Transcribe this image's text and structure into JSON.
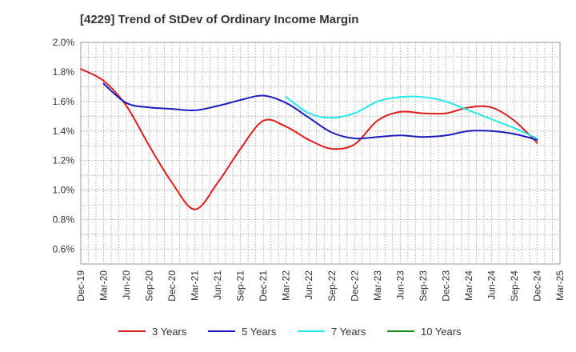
{
  "chart_data": {
    "type": "line",
    "title": "[4229]  Trend of StDev of Ordinary Income Margin",
    "xlabel": "",
    "ylabel": "",
    "ylim": [
      0.5,
      2.0
    ],
    "y_ticks": [
      "0.6%",
      "0.8%",
      "1.0%",
      "1.2%",
      "1.4%",
      "1.6%",
      "1.8%",
      "2.0%"
    ],
    "y_tick_values": [
      0.6,
      0.8,
      1.0,
      1.2,
      1.4,
      1.6,
      1.8,
      2.0
    ],
    "x_ticks": [
      "Dec-19",
      "Mar-20",
      "Jun-20",
      "Sep-20",
      "Dec-20",
      "Mar-21",
      "Jun-21",
      "Sep-21",
      "Dec-21",
      "Mar-22",
      "Jun-22",
      "Sep-22",
      "Dec-22",
      "Mar-23",
      "Jun-23",
      "Sep-23",
      "Dec-23",
      "Mar-24",
      "Jun-24",
      "Sep-24",
      "Dec-24",
      "Mar-25"
    ],
    "grid": true,
    "legend_position": "bottom",
    "series": [
      {
        "name": "3 Years",
        "color": "#dd1c1c",
        "x": [
          "Dec-19",
          "Mar-20",
          "Jun-20",
          "Sep-20",
          "Dec-20",
          "Mar-21",
          "Jun-21",
          "Sep-21",
          "Dec-21",
          "Mar-22",
          "Jun-22",
          "Sep-22",
          "Dec-22",
          "Mar-23",
          "Jun-23",
          "Sep-23",
          "Dec-23",
          "Mar-24",
          "Jun-24",
          "Sep-24",
          "Dec-24"
        ],
        "values": [
          1.82,
          1.74,
          1.57,
          1.3,
          1.05,
          0.87,
          1.05,
          1.28,
          1.47,
          1.43,
          1.34,
          1.28,
          1.31,
          1.47,
          1.53,
          1.52,
          1.52,
          1.56,
          1.56,
          1.47,
          1.32
        ]
      },
      {
        "name": "5 Years",
        "color": "#1c1cbe",
        "x": [
          "Mar-20",
          "Jun-20",
          "Sep-20",
          "Dec-20",
          "Mar-21",
          "Jun-21",
          "Sep-21",
          "Dec-21",
          "Mar-22",
          "Jun-22",
          "Sep-22",
          "Dec-22",
          "Mar-23",
          "Jun-23",
          "Sep-23",
          "Dec-23",
          "Mar-24",
          "Jun-24",
          "Sep-24",
          "Dec-24"
        ],
        "values": [
          1.72,
          1.59,
          1.56,
          1.55,
          1.54,
          1.57,
          1.61,
          1.64,
          1.59,
          1.49,
          1.39,
          1.35,
          1.36,
          1.37,
          1.36,
          1.37,
          1.4,
          1.4,
          1.38,
          1.34
        ]
      },
      {
        "name": "7 Years",
        "color": "#22e8e8",
        "x": [
          "Mar-22",
          "Jun-22",
          "Sep-22",
          "Dec-22",
          "Mar-23",
          "Jun-23",
          "Sep-23",
          "Dec-23",
          "Mar-24",
          "Jun-24",
          "Sep-24",
          "Dec-24"
        ],
        "values": [
          1.63,
          1.52,
          1.49,
          1.52,
          1.6,
          1.63,
          1.63,
          1.6,
          1.54,
          1.48,
          1.42,
          1.35
        ]
      },
      {
        "name": "10 Years",
        "color": "#1c8c1c",
        "x": [],
        "values": []
      }
    ]
  }
}
